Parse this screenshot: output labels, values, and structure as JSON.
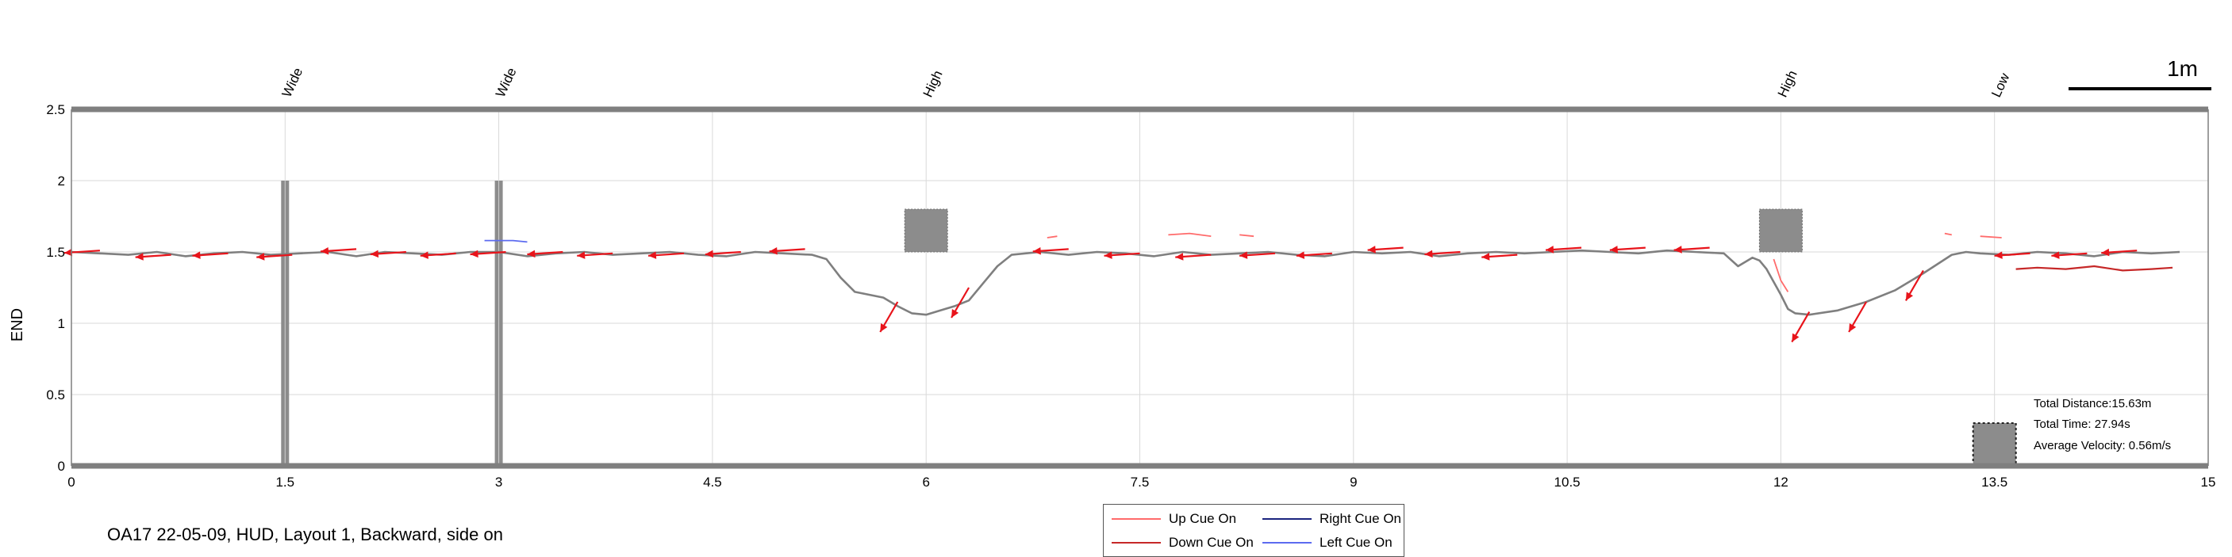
{
  "caption": "OA17 22-05-09, HUD, Layout 1, Backward, side on",
  "scale_bar_label": "1m",
  "stats": {
    "distance": "Total Distance:15.63m",
    "time": "Total Time: 27.94s",
    "velocity": "Average Velocity: 0.56m/s"
  },
  "legend": [
    {
      "label": "Up Cue On",
      "color": "#ff6b6b"
    },
    {
      "label": "Right Cue On",
      "color": "#1a237e"
    },
    {
      "label": "Down Cue On",
      "color": "#c62828"
    },
    {
      "label": "Left Cue On",
      "color": "#5c6bf0"
    }
  ],
  "chart_data": {
    "type": "line",
    "ylabel": "END",
    "xlabel": "",
    "xlim": [
      0,
      15
    ],
    "ylim": [
      0,
      2.5
    ],
    "xticks": [
      "0",
      "1.5",
      "3",
      "4.5",
      "6",
      "7.5",
      "9",
      "10.5",
      "12",
      "13.5",
      "15"
    ],
    "xtick_values": [
      0,
      1.5,
      3,
      4.5,
      6,
      7.5,
      9,
      10.5,
      12,
      13.5,
      15
    ],
    "yticks": [
      "0",
      "0.5",
      "1",
      "1.5",
      "2",
      "2.5"
    ],
    "ytick_values": [
      0,
      0.5,
      1,
      1.5,
      2,
      2.5
    ],
    "grid": true,
    "obstacles": [
      {
        "label": "Wide",
        "x": 1.5,
        "kind": "pole",
        "y0": 0,
        "y1": 2.0
      },
      {
        "label": "Wide",
        "x": 3.0,
        "kind": "pole",
        "y0": 0,
        "y1": 2.0
      },
      {
        "label": "High",
        "x": 6.0,
        "kind": "box",
        "y0": 1.5,
        "y1": 1.8
      },
      {
        "label": "High",
        "x": 12.0,
        "kind": "box",
        "y0": 1.5,
        "y1": 1.8
      },
      {
        "label": "Low",
        "x": 13.5,
        "kind": "box-dotted",
        "y0": 0,
        "y1": 0.3
      }
    ],
    "series": [
      {
        "color": "#7f7f7f",
        "x": [
          0,
          0.2,
          0.4,
          0.6,
          0.8,
          1.0,
          1.2,
          1.4,
          1.6,
          1.8,
          2.0,
          2.2,
          2.4,
          2.6,
          2.8,
          3.0,
          3.2,
          3.4,
          3.6,
          3.8,
          4.0,
          4.2,
          4.4,
          4.6,
          4.8,
          5.0,
          5.2,
          5.3,
          5.4,
          5.5,
          5.6,
          5.7,
          5.8,
          5.9,
          6.0,
          6.1,
          6.2,
          6.3,
          6.4,
          6.5,
          6.6,
          6.8,
          7.0,
          7.2,
          7.4,
          7.6,
          7.8,
          8.0,
          8.2,
          8.4,
          8.6,
          8.8,
          9.0,
          9.2,
          9.4,
          9.6,
          9.8,
          10.0,
          10.2,
          10.4,
          10.6,
          10.8,
          11.0,
          11.2,
          11.4,
          11.6,
          11.7,
          11.8,
          11.85,
          11.9,
          12.0,
          12.05,
          12.1,
          12.2,
          12.4,
          12.6,
          12.8,
          13.0,
          13.2,
          13.3,
          13.4,
          13.6,
          13.8,
          14.0,
          14.2,
          14.4,
          14.6,
          14.8
        ],
        "y": [
          1.5,
          1.49,
          1.48,
          1.5,
          1.47,
          1.49,
          1.5,
          1.48,
          1.49,
          1.5,
          1.47,
          1.5,
          1.49,
          1.48,
          1.5,
          1.5,
          1.47,
          1.49,
          1.5,
          1.48,
          1.49,
          1.5,
          1.48,
          1.47,
          1.5,
          1.49,
          1.48,
          1.45,
          1.32,
          1.22,
          1.2,
          1.18,
          1.12,
          1.07,
          1.06,
          1.09,
          1.12,
          1.16,
          1.28,
          1.4,
          1.48,
          1.5,
          1.48,
          1.5,
          1.49,
          1.47,
          1.5,
          1.48,
          1.49,
          1.5,
          1.48,
          1.47,
          1.5,
          1.49,
          1.5,
          1.47,
          1.49,
          1.5,
          1.49,
          1.5,
          1.51,
          1.5,
          1.49,
          1.51,
          1.5,
          1.49,
          1.4,
          1.46,
          1.44,
          1.38,
          1.2,
          1.1,
          1.07,
          1.06,
          1.09,
          1.15,
          1.23,
          1.35,
          1.48,
          1.5,
          1.49,
          1.48,
          1.5,
          1.49,
          1.47,
          1.5,
          1.49,
          1.5
        ]
      }
    ],
    "cues": {
      "down_left_arrows": [
        [
          0.2,
          1.51
        ],
        [
          0.7,
          1.48
        ],
        [
          1.1,
          1.49
        ],
        [
          1.55,
          1.48
        ],
        [
          2.0,
          1.52
        ],
        [
          2.35,
          1.5
        ],
        [
          2.7,
          1.49
        ],
        [
          3.05,
          1.5
        ],
        [
          3.45,
          1.5
        ],
        [
          3.8,
          1.49
        ],
        [
          4.3,
          1.49
        ],
        [
          4.7,
          1.5
        ],
        [
          5.15,
          1.52
        ],
        [
          7.0,
          1.52
        ],
        [
          7.5,
          1.49
        ],
        [
          8.0,
          1.48
        ],
        [
          8.45,
          1.49
        ],
        [
          8.85,
          1.49
        ],
        [
          9.35,
          1.53
        ],
        [
          9.75,
          1.5
        ],
        [
          10.15,
          1.48
        ],
        [
          10.6,
          1.53
        ],
        [
          11.05,
          1.53
        ],
        [
          11.5,
          1.53
        ],
        [
          13.75,
          1.49
        ],
        [
          14.15,
          1.49
        ],
        [
          14.5,
          1.51
        ]
      ],
      "down_arrows": [
        [
          5.8,
          1.15
        ],
        [
          6.3,
          1.25
        ],
        [
          13.0,
          1.37
        ],
        [
          12.2,
          1.08
        ],
        [
          12.6,
          1.15
        ]
      ],
      "up_cue_segments": [
        [
          [
            6.85,
            1.6
          ],
          [
            6.92,
            1.61
          ]
        ],
        [
          [
            7.7,
            1.62
          ],
          [
            7.85,
            1.63
          ],
          [
            8.0,
            1.61
          ]
        ],
        [
          [
            8.2,
            1.62
          ],
          [
            8.3,
            1.61
          ]
        ],
        [
          [
            11.95,
            1.45
          ],
          [
            12.0,
            1.3
          ],
          [
            12.05,
            1.22
          ]
        ],
        [
          [
            13.15,
            1.63
          ],
          [
            13.2,
            1.62
          ]
        ],
        [
          [
            13.4,
            1.61
          ],
          [
            13.55,
            1.6
          ]
        ]
      ],
      "down_cue_segments": [
        [
          [
            13.65,
            1.38
          ],
          [
            13.8,
            1.39
          ],
          [
            14.0,
            1.38
          ],
          [
            14.2,
            1.4
          ],
          [
            14.4,
            1.37
          ],
          [
            14.6,
            1.38
          ],
          [
            14.75,
            1.39
          ]
        ]
      ],
      "right_cue_segments": [],
      "left_cue_segments": [
        [
          [
            2.9,
            1.58
          ],
          [
            3.1,
            1.58
          ],
          [
            3.2,
            1.57
          ]
        ]
      ]
    }
  }
}
